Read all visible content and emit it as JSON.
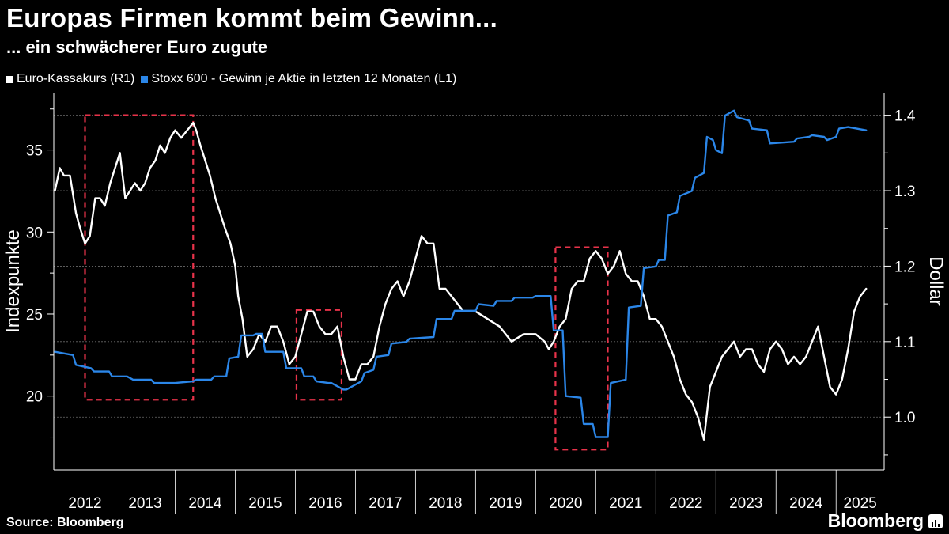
{
  "header": {
    "title": "Europas Firmen kommt beim Gewinn...",
    "subtitle": "... ein schwächerer Euro zugute"
  },
  "footer": {
    "source": "Source: Bloomberg",
    "brand": "Bloomberg"
  },
  "colors": {
    "background": "#000000",
    "eur": "#ffffff",
    "eps": "#2b86e8",
    "highlight": "#e8334a",
    "grid": "#6a6a6a"
  },
  "chart_data": {
    "type": "line",
    "title": "Europas Firmen kommt beim Gewinn...",
    "subtitle": "... ein schwächerer Euro zugute",
    "ylabel_left": "Indexpunkte",
    "ylabel_right": "Dollar",
    "ylim_left": [
      15.5,
      38.5
    ],
    "ylim_right": [
      0.93,
      1.43
    ],
    "yticks_left": [
      20,
      25,
      30,
      35
    ],
    "yticks_right": [
      "1.0",
      "1.1",
      "1.2",
      "1.3",
      "1.4"
    ],
    "xlim": [
      2011.98,
      2025.8
    ],
    "year_labels": [
      "2012",
      "2013",
      "2014",
      "2015",
      "2016",
      "2017",
      "2018",
      "2019",
      "2020",
      "2021",
      "2022",
      "2023",
      "2024",
      "2025"
    ],
    "legend": [
      {
        "name": "Euro-Kassakurs (R1)",
        "color": "#ffffff"
      },
      {
        "name": "Stoxx 600 - Gewinn je Aktie in letzten 12 Monaten (L1)",
        "color": "#2b86e8"
      }
    ],
    "series": [
      {
        "name": "Euro-Kassakurs (R1)",
        "axis": "right",
        "color": "#ffffff",
        "x": [
          2012.0,
          2012.08,
          2012.15,
          2012.25,
          2012.35,
          2012.42,
          2012.5,
          2012.58,
          2012.67,
          2012.75,
          2012.83,
          2012.92,
          2013.0,
          2013.08,
          2013.17,
          2013.25,
          2013.33,
          2013.42,
          2013.5,
          2013.58,
          2013.67,
          2013.75,
          2013.83,
          2013.92,
          2014.0,
          2014.1,
          2014.2,
          2014.3,
          2014.35,
          2014.42,
          2014.5,
          2014.58,
          2014.67,
          2014.75,
          2014.83,
          2014.92,
          2015.0,
          2015.05,
          2015.12,
          2015.2,
          2015.3,
          2015.4,
          2015.5,
          2015.6,
          2015.7,
          2015.8,
          2015.9,
          2016.0,
          2016.1,
          2016.2,
          2016.3,
          2016.4,
          2016.5,
          2016.6,
          2016.7,
          2016.8,
          2016.9,
          2017.0,
          2017.1,
          2017.2,
          2017.3,
          2017.4,
          2017.5,
          2017.6,
          2017.7,
          2017.8,
          2017.9,
          2018.0,
          2018.1,
          2018.2,
          2018.3,
          2018.4,
          2018.5,
          2018.6,
          2018.7,
          2018.8,
          2018.9,
          2019.0,
          2019.2,
          2019.4,
          2019.6,
          2019.8,
          2020.0,
          2020.15,
          2020.22,
          2020.3,
          2020.4,
          2020.5,
          2020.6,
          2020.7,
          2020.8,
          2020.9,
          2021.0,
          2021.1,
          2021.2,
          2021.3,
          2021.4,
          2021.5,
          2021.6,
          2021.7,
          2021.8,
          2021.9,
          2022.0,
          2022.1,
          2022.2,
          2022.3,
          2022.4,
          2022.5,
          2022.6,
          2022.7,
          2022.8,
          2022.9,
          2023.0,
          2023.1,
          2023.2,
          2023.3,
          2023.4,
          2023.5,
          2023.6,
          2023.7,
          2023.8,
          2023.9,
          2024.0,
          2024.1,
          2024.2,
          2024.3,
          2024.4,
          2024.5,
          2024.6,
          2024.7,
          2024.8,
          2024.9,
          2025.0,
          2025.1,
          2025.2,
          2025.3,
          2025.4,
          2025.5
        ],
        "values": [
          1.3,
          1.33,
          1.32,
          1.32,
          1.27,
          1.25,
          1.23,
          1.24,
          1.29,
          1.29,
          1.28,
          1.31,
          1.33,
          1.35,
          1.29,
          1.3,
          1.31,
          1.3,
          1.31,
          1.33,
          1.34,
          1.36,
          1.35,
          1.37,
          1.38,
          1.37,
          1.38,
          1.39,
          1.38,
          1.36,
          1.34,
          1.32,
          1.29,
          1.27,
          1.25,
          1.23,
          1.2,
          1.16,
          1.13,
          1.08,
          1.09,
          1.11,
          1.1,
          1.12,
          1.12,
          1.1,
          1.07,
          1.08,
          1.11,
          1.14,
          1.14,
          1.12,
          1.11,
          1.11,
          1.12,
          1.08,
          1.05,
          1.05,
          1.07,
          1.07,
          1.08,
          1.12,
          1.15,
          1.17,
          1.18,
          1.16,
          1.18,
          1.21,
          1.24,
          1.23,
          1.23,
          1.17,
          1.17,
          1.16,
          1.15,
          1.14,
          1.14,
          1.14,
          1.13,
          1.12,
          1.1,
          1.11,
          1.11,
          1.1,
          1.09,
          1.1,
          1.12,
          1.13,
          1.17,
          1.18,
          1.18,
          1.21,
          1.22,
          1.21,
          1.19,
          1.2,
          1.22,
          1.19,
          1.18,
          1.18,
          1.16,
          1.13,
          1.13,
          1.12,
          1.1,
          1.08,
          1.05,
          1.03,
          1.02,
          1.0,
          0.97,
          1.04,
          1.06,
          1.08,
          1.09,
          1.1,
          1.08,
          1.09,
          1.09,
          1.07,
          1.06,
          1.09,
          1.1,
          1.09,
          1.07,
          1.08,
          1.07,
          1.08,
          1.1,
          1.12,
          1.08,
          1.04,
          1.03,
          1.05,
          1.09,
          1.14,
          1.16,
          1.17
        ]
      },
      {
        "name": "Stoxx 600 - Gewinn je Aktie in letzten 12 Monaten (L1)",
        "axis": "left",
        "color": "#2b86e8",
        "x": [
          2012.0,
          2012.3,
          2012.35,
          2012.6,
          2012.65,
          2012.9,
          2012.95,
          2013.2,
          2013.3,
          2013.6,
          2013.65,
          2013.95,
          2014.0,
          2014.3,
          2014.35,
          2014.6,
          2014.65,
          2014.85,
          2014.9,
          2015.05,
          2015.1,
          2015.3,
          2015.35,
          2015.45,
          2015.5,
          2015.8,
          2015.85,
          2016.1,
          2016.15,
          2016.3,
          2016.35,
          2016.55,
          2016.6,
          2016.8,
          2016.85,
          2017.1,
          2017.15,
          2017.3,
          2017.35,
          2017.55,
          2017.6,
          2017.85,
          2017.9,
          2018.3,
          2018.35,
          2018.6,
          2018.65,
          2019.0,
          2019.05,
          2019.3,
          2019.35,
          2019.6,
          2019.65,
          2019.95,
          2020.0,
          2020.25,
          2020.3,
          2020.45,
          2020.5,
          2020.75,
          2020.8,
          2020.95,
          2021.0,
          2021.2,
          2021.25,
          2021.5,
          2021.55,
          2021.75,
          2021.8,
          2022.0,
          2022.05,
          2022.15,
          2022.2,
          2022.35,
          2022.4,
          2022.6,
          2022.65,
          2022.8,
          2022.85,
          2022.95,
          2023.0,
          2023.1,
          2023.15,
          2023.3,
          2023.35,
          2023.55,
          2023.6,
          2023.85,
          2023.9,
          2024.3,
          2024.35,
          2024.55,
          2024.6,
          2024.8,
          2024.85,
          2025.0,
          2025.05,
          2025.2,
          2025.5
        ],
        "values": [
          22.7,
          22.5,
          21.9,
          21.7,
          21.5,
          21.5,
          21.2,
          21.2,
          21.0,
          21.0,
          20.8,
          20.8,
          20.8,
          20.9,
          21.0,
          21.0,
          21.2,
          21.2,
          22.3,
          22.4,
          23.7,
          23.7,
          23.8,
          23.8,
          22.7,
          22.7,
          21.7,
          21.7,
          21.2,
          21.2,
          20.9,
          20.8,
          20.8,
          20.4,
          20.4,
          20.9,
          21.4,
          21.6,
          22.4,
          22.5,
          23.2,
          23.3,
          23.5,
          23.6,
          24.7,
          24.7,
          25.2,
          25.2,
          25.6,
          25.5,
          25.8,
          25.8,
          26.0,
          26.0,
          26.1,
          26.1,
          24.0,
          24.0,
          20.0,
          19.9,
          18.3,
          18.3,
          17.5,
          17.5,
          20.8,
          21.0,
          25.4,
          25.5,
          27.8,
          27.9,
          28.3,
          28.3,
          31.0,
          31.2,
          32.2,
          32.5,
          33.3,
          33.6,
          35.8,
          35.6,
          35.0,
          34.8,
          37.1,
          37.4,
          37.0,
          36.8,
          36.3,
          36.2,
          35.4,
          35.5,
          35.7,
          35.8,
          35.9,
          35.8,
          35.6,
          35.8,
          36.3,
          36.4,
          36.2
        ]
      }
    ],
    "highlight_boxes": [
      {
        "x_start": 2012.5,
        "x_end": 2014.3,
        "usd_top": 1.4,
        "usd_bottom": 1.023
      },
      {
        "x_start": 2016.02,
        "x_end": 2016.77,
        "usd_top": 1.142,
        "usd_bottom": 1.023
      },
      {
        "x_start": 2020.33,
        "x_end": 2021.2,
        "usd_top": 1.225,
        "usd_bottom": 0.957
      }
    ]
  }
}
